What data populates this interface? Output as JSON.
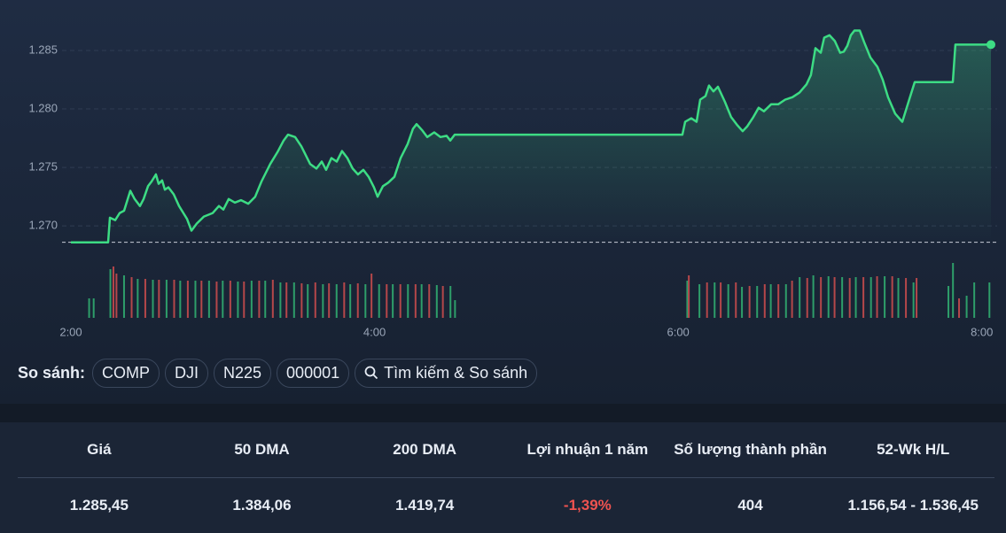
{
  "chart_data": {
    "type": "line",
    "xlim": [
      2,
      8.06
    ],
    "xticks": [
      {
        "value": 2,
        "label": "2:00"
      },
      {
        "value": 4,
        "label": "4:00"
      },
      {
        "value": 6,
        "label": "6:00"
      },
      {
        "value": 8,
        "label": "8:00"
      }
    ],
    "ylim": [
      1.2685,
      1.2878
    ],
    "yticks": [
      {
        "value": 1.27,
        "label": "1.270"
      },
      1.275,
      {
        "value": 1.28,
        "label": "1.280"
      },
      1.285
    ],
    "grid": true,
    "reference_line": 1.2686,
    "series": [
      {
        "color": "#3ddc84",
        "x": [
          2.0,
          2.245,
          2.257,
          2.292,
          2.321,
          2.35,
          2.391,
          2.42,
          2.455,
          2.479,
          2.508,
          2.531,
          2.56,
          2.578,
          2.601,
          2.619,
          2.642,
          2.677,
          2.712,
          2.741,
          2.765,
          2.794,
          2.829,
          2.876,
          2.934,
          2.975,
          3.004,
          3.039,
          3.08,
          3.121,
          3.168,
          3.214,
          3.255,
          3.313,
          3.36,
          3.401,
          3.43,
          3.477,
          3.518,
          3.576,
          3.617,
          3.652,
          3.681,
          3.716,
          3.751,
          3.786,
          3.821,
          3.856,
          3.891,
          3.926,
          3.961,
          3.996,
          4.02,
          4.055,
          4.09,
          4.131,
          4.172,
          4.218,
          4.253,
          4.277,
          4.312,
          4.347,
          4.393,
          4.434,
          4.475,
          4.499,
          4.528,
          6.028,
          6.046,
          6.086,
          6.121,
          6.145,
          6.18,
          6.203,
          6.232,
          6.262,
          6.308,
          6.349,
          6.39,
          6.425,
          6.454,
          6.495,
          6.53,
          6.565,
          6.612,
          6.659,
          6.705,
          6.752,
          6.799,
          6.845,
          6.874,
          6.904,
          6.939,
          6.962,
          6.997,
          7.032,
          7.067,
          7.091,
          7.114,
          7.137,
          7.161,
          7.196,
          7.225,
          7.266,
          7.312,
          7.347,
          7.382,
          7.429,
          7.476,
          7.517,
          7.558,
          7.604,
          7.809,
          7.826,
          8.06
        ],
        "values": [
          1.2686,
          1.2686,
          1.2707,
          1.2705,
          1.2711,
          1.2713,
          1.273,
          1.2723,
          1.2717,
          1.2723,
          1.2734,
          1.2738,
          1.2744,
          1.2736,
          1.2739,
          1.2731,
          1.2733,
          1.2727,
          1.2717,
          1.2711,
          1.2706,
          1.2696,
          1.2702,
          1.2708,
          1.2711,
          1.2717,
          1.2714,
          1.2723,
          1.272,
          1.2722,
          1.2719,
          1.2725,
          1.2738,
          1.2753,
          1.2763,
          1.2773,
          1.2778,
          1.2776,
          1.2768,
          1.2753,
          1.2749,
          1.2755,
          1.2748,
          1.2758,
          1.2755,
          1.2764,
          1.2758,
          1.2749,
          1.2744,
          1.2748,
          1.2742,
          1.2733,
          1.2725,
          1.2734,
          1.2737,
          1.2742,
          1.2758,
          1.277,
          1.2783,
          1.2787,
          1.2782,
          1.2776,
          1.278,
          1.2776,
          1.2777,
          1.2773,
          1.2778,
          1.2778,
          1.2789,
          1.2792,
          1.2789,
          1.2808,
          1.2811,
          1.282,
          1.2815,
          1.2819,
          1.2806,
          1.2793,
          1.2786,
          1.2781,
          1.2785,
          1.2793,
          1.2801,
          1.2798,
          1.2804,
          1.2804,
          1.2808,
          1.281,
          1.2814,
          1.2821,
          1.2829,
          1.2852,
          1.2848,
          1.2861,
          1.2863,
          1.2858,
          1.2848,
          1.2849,
          1.2854,
          1.2863,
          1.2867,
          1.2867,
          1.2857,
          1.2844,
          1.2836,
          1.2825,
          1.281,
          1.2796,
          1.2789,
          1.2806,
          1.2823,
          1.2823,
          1.2823,
          1.2855,
          1.2855
        ]
      }
    ],
    "volume": {
      "ylim": [
        0,
        62
      ],
      "up": {
        "color": "#2e9e6a",
        "x": [
          2.12,
          2.15,
          2.26,
          2.35,
          2.44,
          2.54,
          2.63,
          2.72,
          2.82,
          2.91,
          3.0,
          3.1,
          3.19,
          3.28,
          3.38,
          3.47,
          3.56,
          3.66,
          3.75,
          3.84,
          3.94,
          4.03,
          4.12,
          4.22,
          4.31,
          4.41,
          4.5,
          4.53,
          6.06,
          6.14,
          6.24,
          6.33,
          6.42,
          6.52,
          6.61,
          6.71,
          6.8,
          6.89,
          6.99,
          7.08,
          7.17,
          7.27,
          7.36,
          7.45,
          7.55,
          7.78,
          7.81,
          7.9,
          7.95,
          8.05
        ],
        "values": [
          22,
          22,
          55,
          48,
          44,
          43,
          43,
          42,
          42,
          42,
          42,
          41,
          42,
          42,
          40,
          40,
          38,
          38,
          38,
          38,
          38,
          38,
          38,
          38,
          38,
          37,
          36,
          20,
          42,
          38,
          40,
          38,
          35,
          36,
          38,
          38,
          46,
          48,
          47,
          46,
          46,
          46,
          47,
          45,
          40,
          36,
          62,
          25,
          40,
          40
        ]
      },
      "down": {
        "color": "#b5474a",
        "x": [
          2.28,
          2.3,
          2.4,
          2.49,
          2.58,
          2.68,
          2.77,
          2.86,
          2.96,
          3.05,
          3.14,
          3.24,
          3.33,
          3.42,
          3.52,
          3.61,
          3.7,
          3.8,
          3.89,
          3.98,
          4.08,
          4.17,
          4.27,
          4.36,
          4.45,
          6.07,
          6.19,
          6.28,
          6.38,
          6.47,
          6.57,
          6.66,
          6.75,
          6.85,
          6.94,
          7.03,
          7.13,
          7.22,
          7.31,
          7.41,
          7.5,
          7.57,
          7.85
        ],
        "values": [
          58,
          50,
          46,
          44,
          43,
          43,
          42,
          42,
          41,
          42,
          41,
          42,
          43,
          40,
          39,
          40,
          39,
          40,
          39,
          50,
          38,
          38,
          38,
          38,
          36,
          48,
          40,
          40,
          40,
          36,
          38,
          38,
          42,
          45,
          46,
          46,
          45,
          46,
          47,
          47,
          45,
          45,
          22
        ]
      }
    }
  },
  "compare": {
    "label": "So sánh:",
    "items": [
      "COMP",
      "DJI",
      "N225",
      "000001"
    ],
    "search": "Tìm kiếm & So sánh"
  },
  "stats": {
    "headers": [
      "Giá",
      "50 DMA",
      "200 DMA",
      "Lợi nhuận 1 năm",
      "Số lượng thành phần",
      "52-Wk H/L"
    ],
    "values": [
      "1.285,45",
      "1.384,06",
      "1.419,74",
      "-1,39%",
      "404",
      "1.156,54 - 1.536,45"
    ]
  }
}
